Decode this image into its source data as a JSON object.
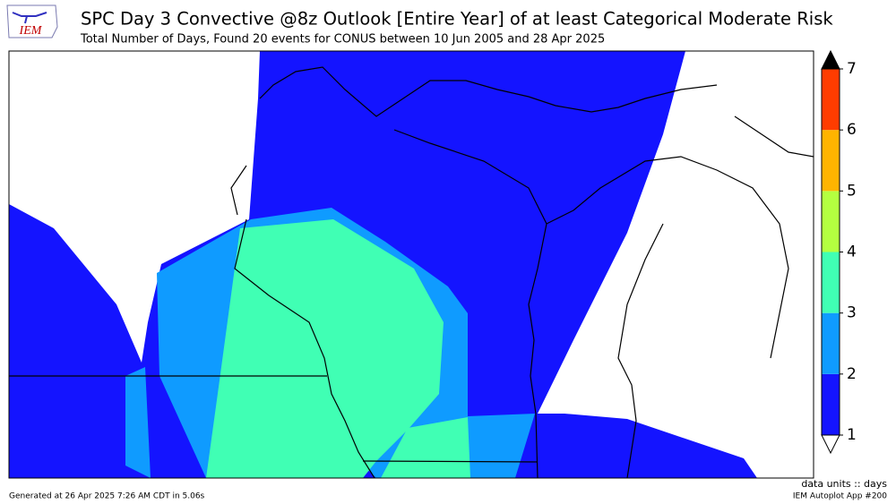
{
  "header": {
    "title": "SPC Day 3 Convective @8z Outlook [Entire Year] of at least Categorical Moderate Risk",
    "subtitle": "Total Number of Days, Found 20 events for CONUS between 10 Jun 2005 and 28 Apr 2025"
  },
  "logo": "IEM",
  "legend": {
    "ticks": [
      1,
      2,
      3,
      4,
      5,
      6,
      7
    ],
    "colors": [
      "#1414ff",
      "#0f9bff",
      "#40ffb4",
      "#b4ff40",
      "#ffb400",
      "#ff3c00"
    ],
    "over_color": "#000000",
    "under_color": "#ffffff",
    "units": "data units :: days"
  },
  "footer": {
    "left": "Generated at 26 Apr 2025 7:26 AM CDT in 5.06s",
    "right": "IEM Autoplot App #200"
  }
}
